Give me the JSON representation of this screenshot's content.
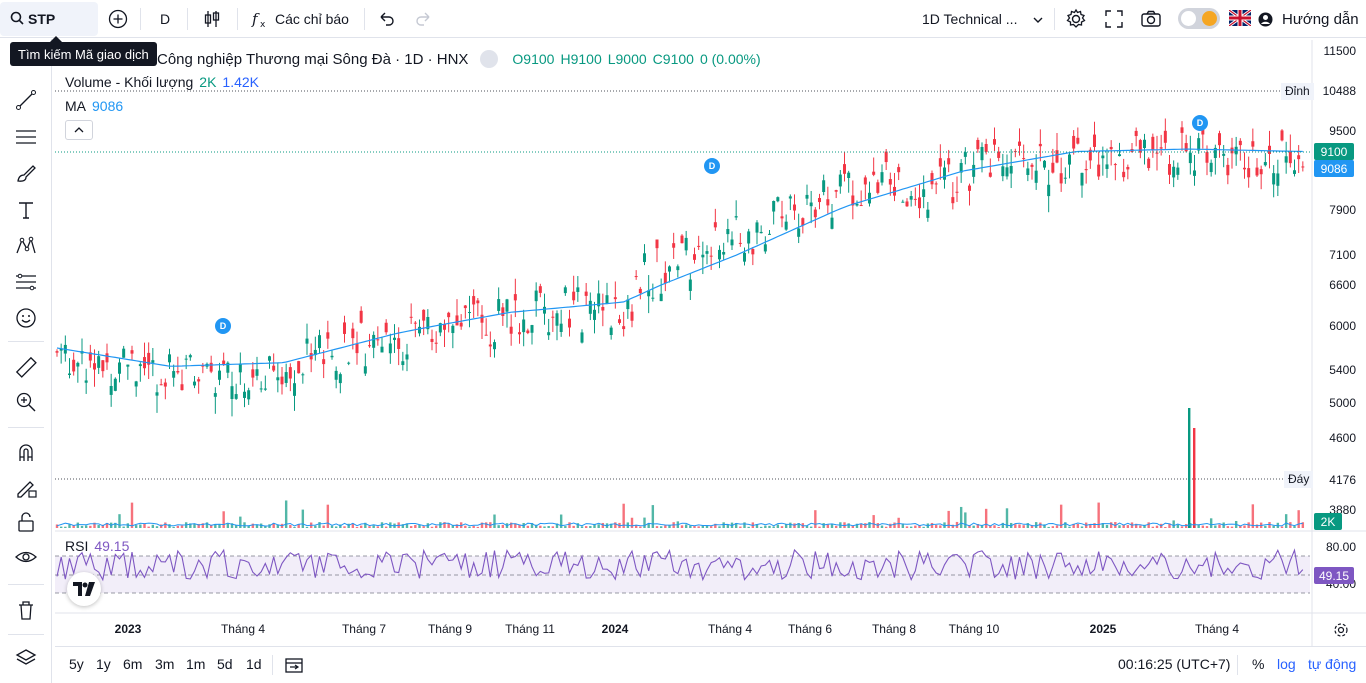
{
  "header": {
    "symbol": "STP",
    "interval": "D",
    "indicators_label": "Các chỉ báo",
    "layout_name": "1D Technical ...",
    "guide_label": "Hướng dẫn"
  },
  "tooltip": {
    "text": "Tìm kiếm Mã giao dịch"
  },
  "legend": {
    "title": "Công nghiệp Thương mại Sông Đà · 1D · HNX",
    "open": "O9100",
    "high": "H9100",
    "low": "L9000",
    "close": "C9100",
    "change": "0 (0.00%)",
    "volume_label": "Volume - Khối lượng",
    "volume_val1": "2K",
    "volume_val2": "1.42K",
    "ma_label": "MA",
    "ma_val": "9086",
    "rsi_label": "RSI",
    "rsi_val": "49.15"
  },
  "price_axis": {
    "ticks": [
      "11500",
      "10488",
      "9500",
      "7900",
      "7100",
      "6600",
      "6000",
      "5400",
      "5000",
      "4600",
      "4176",
      "3880"
    ],
    "high_label": "Đỉnh",
    "low_label": "Đáy",
    "last_price": "9100",
    "ma_price": "9086",
    "volume_tag": "2K",
    "rsi_ticks": [
      "80.00",
      "40.00"
    ],
    "rsi_tag": "49.15"
  },
  "time_axis": {
    "labels": [
      "2023",
      "Tháng 4",
      "Tháng 7",
      "Tháng 9",
      "Tháng 11",
      "2024",
      "Tháng 4",
      "Tháng 6",
      "Tháng 8",
      "Tháng 10",
      "2025",
      "Tháng 4"
    ]
  },
  "bottom": {
    "ranges": [
      "5y",
      "1y",
      "6m",
      "3m",
      "1m",
      "5d",
      "1d"
    ],
    "clock": "00:16:25 (UTC+7)",
    "percent": "%",
    "log": "log",
    "auto": "tự động"
  },
  "dividend_marker": "D",
  "colors": {
    "up": "#089981",
    "down": "#f23645",
    "ma": "#2196f3",
    "rsi": "#7e57c2",
    "accent": "#2962ff"
  },
  "chart_data": {
    "type": "line",
    "series": [
      {
        "name": "MA",
        "x_months": [
          "2023-01",
          "2023-04",
          "2023-07",
          "2023-09",
          "2023-11",
          "2024-01",
          "2024-04",
          "2024-06",
          "2024-08",
          "2024-10",
          "2025-01",
          "2025-04"
        ],
        "values": [
          5700,
          5450,
          5500,
          5900,
          6200,
          6350,
          7100,
          8000,
          8700,
          9100,
          9150,
          9100
        ]
      }
    ],
    "ylim": [
      3880,
      11500
    ],
    "price_high": 10488,
    "price_low": 4176,
    "last_close": 9100
  }
}
